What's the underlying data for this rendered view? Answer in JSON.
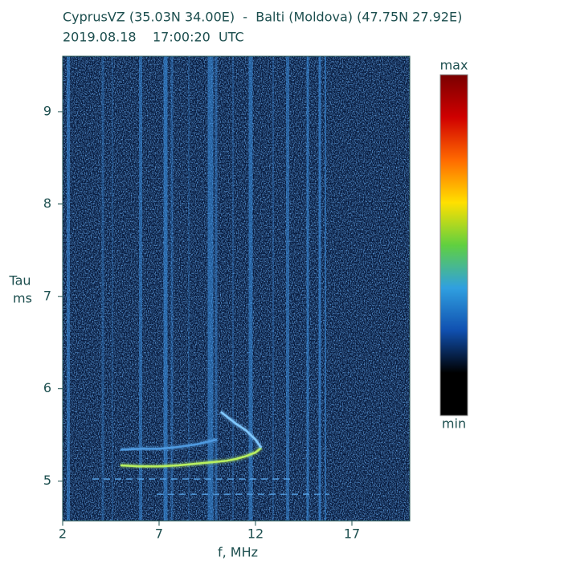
{
  "chart_data": {
    "type": "ionogram",
    "title": "CyprusVZ (35.03N 34.00E)  -  Balti (Moldova) (47.75N 27.92E)",
    "subtitle": "2019.08.18    17:00:20  UTC",
    "y_label": "Tau",
    "y_unit": "ms",
    "x_label": "f, MHz",
    "xlim": [
      2,
      20
    ],
    "ylim": [
      4.57,
      9.6
    ],
    "xticks": [
      2,
      7,
      12,
      17
    ],
    "yticks": [
      5,
      6,
      7,
      8,
      9
    ],
    "colorbar": {
      "max_label": "max",
      "min_label": "min",
      "colors": [
        "#7a0000",
        "#d00000",
        "#ff6a00",
        "#ffe000",
        "#60d040",
        "#30a0e0",
        "#1050b0",
        "#000000",
        "#000000"
      ]
    },
    "series": [
      {
        "color": "#b8f060",
        "x": [
          5,
          6,
          7,
          8,
          9,
          10,
          10.5,
          11,
          11.5,
          12,
          12.3
        ],
        "values": [
          5.17,
          5.16,
          5.16,
          5.17,
          5.19,
          5.21,
          5.22,
          5.24,
          5.27,
          5.31,
          5.36
        ]
      },
      {
        "color": "#80c8ff",
        "x": [
          12.3,
          12,
          11.5,
          11,
          10.5,
          10.2
        ],
        "values": [
          5.36,
          5.45,
          5.55,
          5.62,
          5.7,
          5.75
        ]
      },
      {
        "color": "#4f9ae0",
        "x": [
          5,
          6,
          7,
          8,
          9,
          10
        ],
        "values": [
          5.34,
          5.35,
          5.35,
          5.37,
          5.4,
          5.45
        ]
      }
    ]
  }
}
